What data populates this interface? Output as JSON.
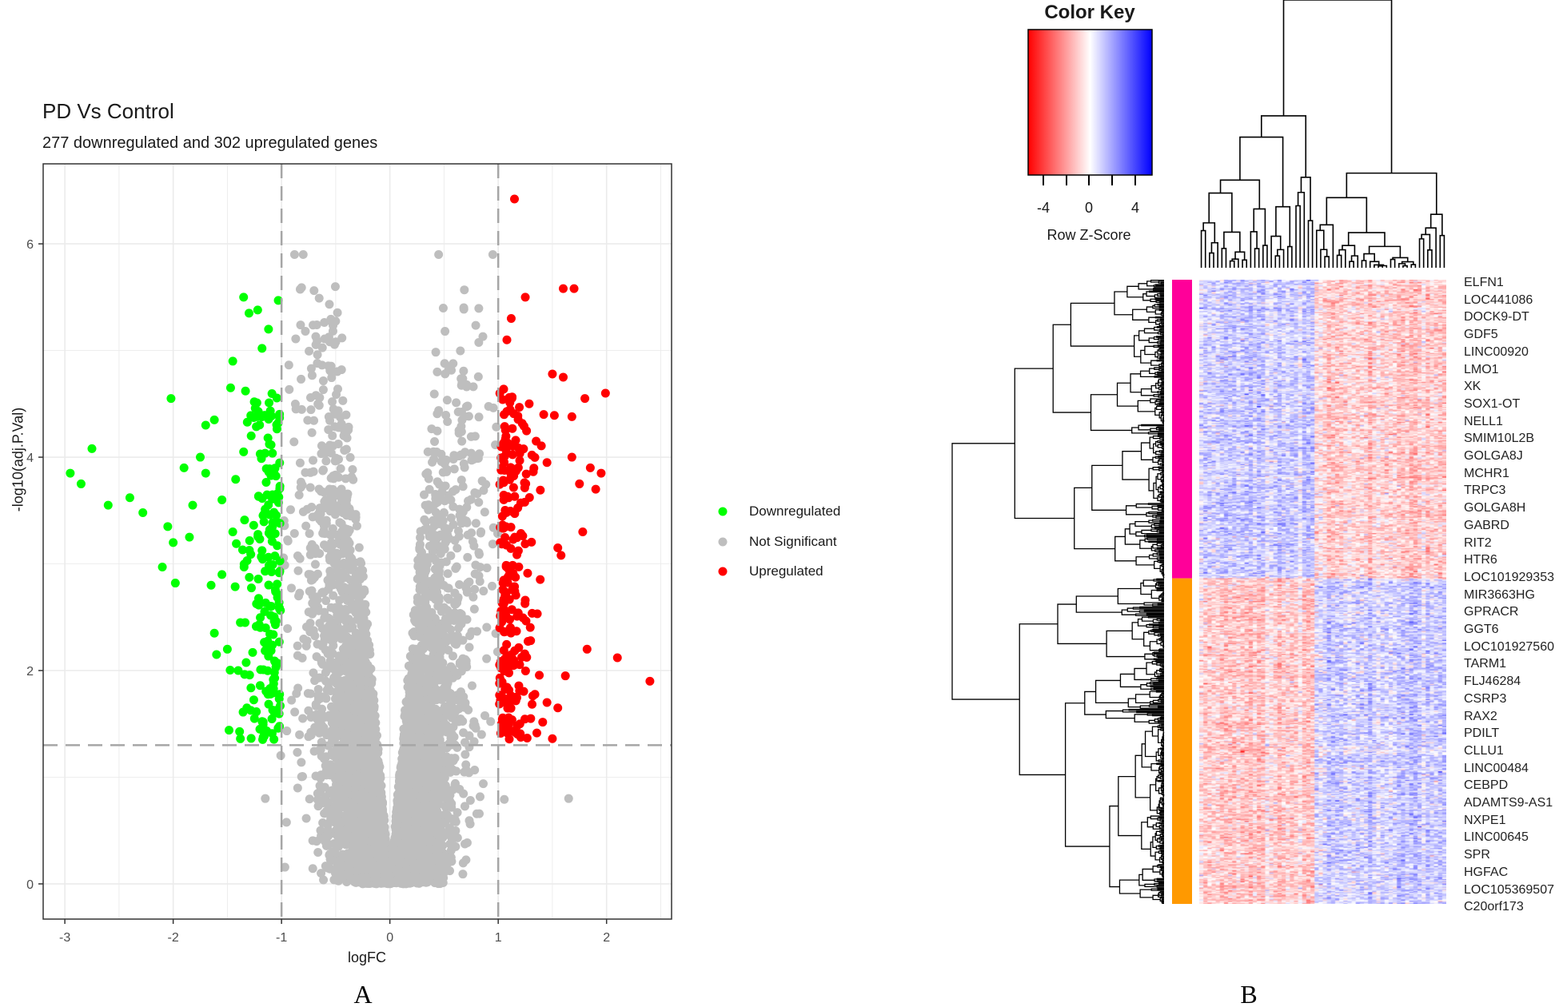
{
  "panels": {
    "a_label": "A",
    "b_label": "B"
  },
  "chart_data": [
    {
      "type": "scatter",
      "title": "PD Vs Control",
      "subtitle": "277 downregulated and 302 upregulated genes",
      "xlabel": "logFC",
      "ylabel": "-log10(adj.P.Val)",
      "xlim": [
        -3.2,
        2.6
      ],
      "ylim": [
        -0.33,
        6.75
      ],
      "xticks": [
        -3,
        -2,
        -1,
        0,
        1,
        2
      ],
      "yticks": [
        0,
        2,
        4,
        6
      ],
      "xtick_labels": [
        "-3",
        "-2",
        "-1",
        "0",
        "1",
        "2"
      ],
      "ytick_labels": [
        "0",
        "2",
        "4",
        "6"
      ],
      "grid": true,
      "thresholds": {
        "logFC": [
          -1,
          1
        ],
        "neg_log10_p": 1.3
      },
      "legend_position": "right",
      "series": [
        {
          "name": "Downregulated",
          "color": "#00FF00",
          "count": 277,
          "points": [
            [
              -2.95,
              3.85
            ],
            [
              -2.85,
              3.75
            ],
            [
              -2.75,
              4.08
            ],
            [
              -2.6,
              3.55
            ],
            [
              -2.4,
              3.62
            ],
            [
              -2.28,
              3.48
            ],
            [
              -2.1,
              2.97
            ],
            [
              -2.05,
              3.35
            ],
            [
              -2.02,
              4.55
            ],
            [
              -2.0,
              3.2
            ],
            [
              -1.98,
              2.82
            ],
            [
              -1.85,
              3.25
            ],
            [
              -1.9,
              3.9
            ],
            [
              -1.82,
              3.55
            ],
            [
              -1.75,
              4.0
            ],
            [
              -1.7,
              3.85
            ],
            [
              -1.7,
              4.3
            ],
            [
              -1.65,
              2.8
            ],
            [
              -1.62,
              2.35
            ],
            [
              -1.6,
              2.15
            ],
            [
              -1.62,
              4.35
            ],
            [
              -1.55,
              2.9
            ],
            [
              -1.47,
              4.65
            ],
            [
              -1.45,
              4.9
            ],
            [
              -1.35,
              5.5
            ],
            [
              -1.3,
              5.35
            ],
            [
              -1.22,
              5.38
            ],
            [
              -1.18,
              5.02
            ],
            [
              -1.12,
              5.2
            ],
            [
              -1.03,
              5.47
            ],
            [
              -1.55,
              3.6
            ],
            [
              -1.45,
              3.3
            ],
            [
              -1.38,
              2.45
            ],
            [
              -1.32,
              1.65
            ],
            [
              -1.25,
              1.55
            ],
            [
              -1.2,
              1.45
            ],
            [
              -1.4,
              2.0
            ],
            [
              -1.5,
              2.2
            ],
            [
              -1.28,
              4.2
            ],
            [
              -1.35,
              4.05
            ]
          ]
        },
        {
          "name": "Not Significant",
          "color": "#BEBEBE",
          "count": null,
          "points": [
            [
              -0.88,
              5.9
            ],
            [
              -0.8,
              5.9
            ],
            [
              0.45,
              5.9
            ],
            [
              0.95,
              5.9
            ],
            [
              -1.15,
              0.8
            ],
            [
              1.65,
              0.8
            ]
          ]
        },
        {
          "name": "Upregulated",
          "color": "#FF0000",
          "count": 302,
          "points": [
            [
              1.15,
              6.42
            ],
            [
              1.6,
              5.58
            ],
            [
              1.7,
              5.58
            ],
            [
              1.25,
              5.5
            ],
            [
              1.12,
              5.3
            ],
            [
              1.08,
              5.1
            ],
            [
              1.5,
              4.78
            ],
            [
              1.6,
              4.75
            ],
            [
              1.8,
              4.55
            ],
            [
              1.99,
              4.6
            ],
            [
              1.42,
              4.4
            ],
            [
              1.68,
              4.38
            ],
            [
              1.85,
              3.9
            ],
            [
              1.95,
              3.85
            ],
            [
              1.75,
              3.75
            ],
            [
              1.9,
              3.7
            ],
            [
              1.78,
              3.3
            ],
            [
              1.55,
              3.15
            ],
            [
              1.58,
              3.08
            ],
            [
              1.82,
              2.2
            ],
            [
              2.1,
              2.12
            ],
            [
              2.4,
              1.9
            ],
            [
              1.62,
              1.95
            ],
            [
              1.55,
              1.65
            ],
            [
              1.45,
              1.7
            ],
            [
              1.3,
              1.55
            ],
            [
              1.2,
              1.5
            ],
            [
              1.35,
              4.15
            ],
            [
              1.45,
              3.95
            ],
            [
              1.68,
              4.0
            ]
          ]
        }
      ]
    },
    {
      "type": "heatmap",
      "color_key": {
        "title": "Color Key",
        "xlabel": "Row Z-Score",
        "tick_labels": [
          "-4",
          "0",
          "4"
        ],
        "range": [
          -5,
          5
        ],
        "low_color": "#FF0000",
        "mid_color": "#FFFFFF",
        "high_color": "#0000FF"
      },
      "row_groups": [
        {
          "color": "#FF0099",
          "rows": 277
        },
        {
          "color": "#FF9900",
          "rows": 302
        }
      ],
      "row_labels": [
        "ELFN1",
        "LOC441086",
        "DOCK9-DT",
        "GDF5",
        "LINC00920",
        "LMO1",
        "XK",
        "SOX1-OT",
        "NELL1",
        "SMIM10L2B",
        "GOLGA8J",
        "MCHR1",
        "TRPC3",
        "GOLGA8H",
        "GABRD",
        "RIT2",
        "HTR6",
        "LOC101929353",
        "MIR3663HG",
        "GPRACR",
        "GGT6",
        "LOC101927560",
        "TARM1",
        "FLJ46284",
        "CSRP3",
        "RAX2",
        "PDILT",
        "CLLU1",
        "LINC00484",
        "CEBPD",
        "ADAMTS9-AS1",
        "NXPE1",
        "LINC00645",
        "SPR",
        "HGFAC",
        "LOC105369507",
        "C20orf173"
      ]
    }
  ]
}
